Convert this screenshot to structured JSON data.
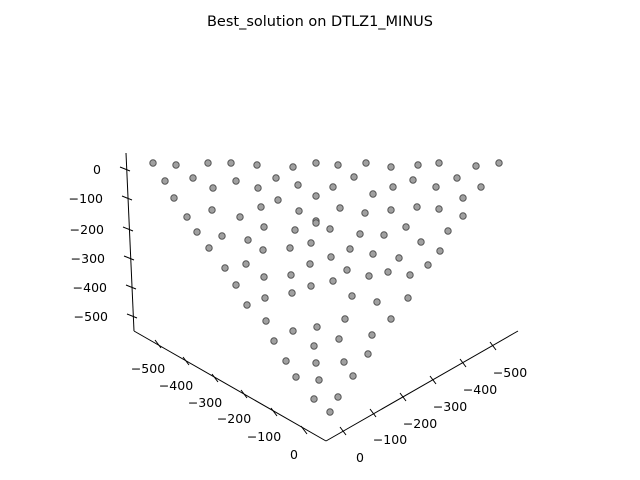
{
  "chart_data": {
    "type": "scatter",
    "title": "Best_solution on DTLZ1_MINUS",
    "projection": "3d",
    "grid": false,
    "marker_fill": "#a0a0a0",
    "marker_edge": "#555555",
    "axes": {
      "x": {
        "label": "",
        "ticks": [
          "−500",
          "−400",
          "−300",
          "−200",
          "−100",
          "0"
        ]
      },
      "y": {
        "label": "",
        "ticks": [
          "−500",
          "−400",
          "−300",
          "−200",
          "−100",
          "0"
        ]
      },
      "z": {
        "label": "",
        "ticks": [
          "0",
          "−100",
          "−200",
          "−300",
          "−400",
          "−500"
        ]
      }
    },
    "points": [
      [
        153,
        163
      ],
      [
        176,
        165
      ],
      [
        208,
        163
      ],
      [
        231,
        163
      ],
      [
        257,
        165
      ],
      [
        293,
        167
      ],
      [
        316,
        163
      ],
      [
        338,
        165
      ],
      [
        366,
        163
      ],
      [
        391,
        167
      ],
      [
        418,
        165
      ],
      [
        439,
        163
      ],
      [
        476,
        166
      ],
      [
        499,
        163
      ],
      [
        165,
        181
      ],
      [
        193,
        178
      ],
      [
        213,
        188
      ],
      [
        236,
        181
      ],
      [
        258,
        188
      ],
      [
        276,
        178
      ],
      [
        298,
        185
      ],
      [
        316,
        196
      ],
      [
        333,
        187
      ],
      [
        354,
        177
      ],
      [
        373,
        194
      ],
      [
        393,
        187
      ],
      [
        413,
        180
      ],
      [
        436,
        187
      ],
      [
        457,
        178
      ],
      [
        481,
        187
      ],
      [
        174,
        198
      ],
      [
        212,
        210
      ],
      [
        240,
        217
      ],
      [
        261,
        207
      ],
      [
        278,
        200
      ],
      [
        299,
        211
      ],
      [
        316,
        221
      ],
      [
        340,
        208
      ],
      [
        365,
        213
      ],
      [
        391,
        210
      ],
      [
        417,
        207
      ],
      [
        439,
        209
      ],
      [
        463,
        198
      ],
      [
        187,
        217
      ],
      [
        197,
        232
      ],
      [
        222,
        236
      ],
      [
        248,
        240
      ],
      [
        264,
        227
      ],
      [
        295,
        230
      ],
      [
        316,
        223
      ],
      [
        330,
        229
      ],
      [
        360,
        234
      ],
      [
        384,
        235
      ],
      [
        406,
        227
      ],
      [
        421,
        242
      ],
      [
        448,
        231
      ],
      [
        463,
        216
      ],
      [
        209,
        248
      ],
      [
        225,
        268
      ],
      [
        246,
        264
      ],
      [
        263,
        250
      ],
      [
        290,
        248
      ],
      [
        311,
        243
      ],
      [
        331,
        257
      ],
      [
        350,
        249
      ],
      [
        373,
        254
      ],
      [
        399,
        258
      ],
      [
        428,
        265
      ],
      [
        440,
        251
      ],
      [
        236,
        285
      ],
      [
        264,
        277
      ],
      [
        291,
        275
      ],
      [
        310,
        264
      ],
      [
        347,
        270
      ],
      [
        369,
        276
      ],
      [
        388,
        272
      ],
      [
        410,
        275
      ],
      [
        247,
        305
      ],
      [
        265,
        298
      ],
      [
        292,
        293
      ],
      [
        311,
        286
      ],
      [
        333,
        281
      ],
      [
        352,
        296
      ],
      [
        377,
        302
      ],
      [
        408,
        298
      ],
      [
        266,
        321
      ],
      [
        293,
        331
      ],
      [
        317,
        327
      ],
      [
        345,
        319
      ],
      [
        391,
        319
      ],
      [
        274,
        341
      ],
      [
        314,
        346
      ],
      [
        339,
        339
      ],
      [
        372,
        335
      ],
      [
        286,
        361
      ],
      [
        316,
        363
      ],
      [
        344,
        362
      ],
      [
        368,
        354
      ],
      [
        296,
        377
      ],
      [
        319,
        380
      ],
      [
        353,
        376
      ],
      [
        314,
        399
      ],
      [
        338,
        397
      ],
      [
        330,
        412
      ]
    ]
  }
}
